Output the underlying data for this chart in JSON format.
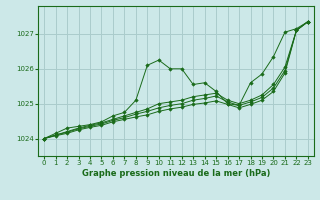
{
  "title": "Graphe pression niveau de la mer (hPa)",
  "bg_color": "#cce8e8",
  "grid_color": "#aacccc",
  "line_color": "#1a6b1a",
  "marker_color": "#1a6b1a",
  "xlim": [
    -0.5,
    23.5
  ],
  "ylim": [
    1023.5,
    1027.8
  ],
  "yticks": [
    1024,
    1025,
    1026,
    1027
  ],
  "xticks": [
    0,
    1,
    2,
    3,
    4,
    5,
    6,
    7,
    8,
    9,
    10,
    11,
    12,
    13,
    14,
    15,
    16,
    17,
    18,
    19,
    20,
    21,
    22,
    23
  ],
  "series": [
    [
      1024.0,
      1024.15,
      1024.3,
      1024.35,
      1024.4,
      1024.48,
      1024.65,
      1024.75,
      1025.1,
      1026.1,
      1026.25,
      1026.0,
      1026.0,
      1025.55,
      1025.6,
      1025.35,
      1025.0,
      1024.95,
      1025.6,
      1025.85,
      1026.35,
      1027.05,
      1027.15,
      1027.35
    ],
    [
      1024.0,
      1024.1,
      1024.2,
      1024.3,
      1024.38,
      1024.45,
      1024.55,
      1024.65,
      1024.75,
      1024.85,
      1025.0,
      1025.05,
      1025.1,
      1025.2,
      1025.25,
      1025.3,
      1025.1,
      1025.0,
      1025.1,
      1025.25,
      1025.55,
      1026.05,
      1027.1,
      1027.35
    ],
    [
      1024.0,
      1024.1,
      1024.18,
      1024.28,
      1024.35,
      1024.42,
      1024.52,
      1024.6,
      1024.7,
      1024.78,
      1024.88,
      1024.95,
      1025.0,
      1025.1,
      1025.15,
      1025.22,
      1025.05,
      1024.95,
      1025.05,
      1025.18,
      1025.45,
      1025.95,
      1027.1,
      1027.35
    ],
    [
      1024.0,
      1024.08,
      1024.15,
      1024.25,
      1024.32,
      1024.38,
      1024.48,
      1024.55,
      1024.62,
      1024.68,
      1024.78,
      1024.85,
      1024.9,
      1024.98,
      1025.02,
      1025.08,
      1024.98,
      1024.88,
      1024.98,
      1025.1,
      1025.35,
      1025.88,
      1027.1,
      1027.35
    ]
  ]
}
